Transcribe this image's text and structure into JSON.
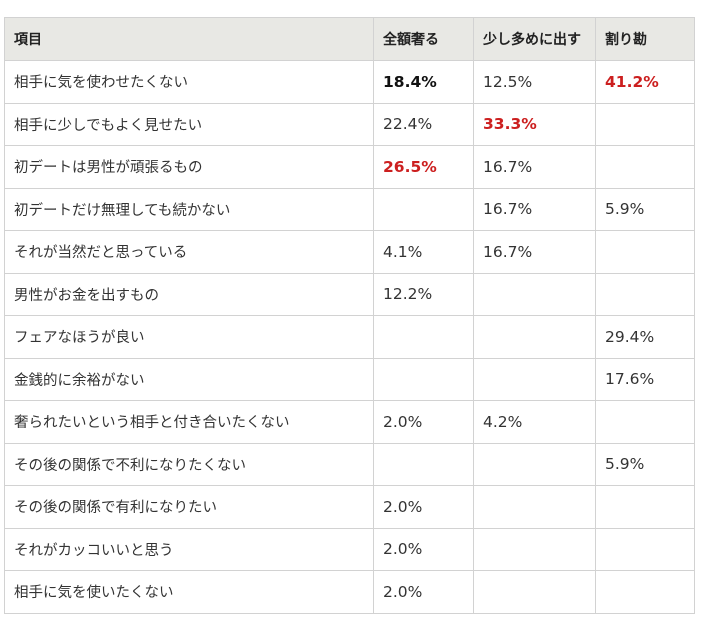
{
  "table": {
    "headers": [
      "項目",
      "全額奢る",
      "少し多めに出す",
      "割り勘"
    ],
    "rows": [
      {
        "item": "相手に気を使わせたくない",
        "full": "18.4%",
        "more": "12.5%",
        "split": "41.2%"
      },
      {
        "item": "相手に少しでもよく見せたい",
        "full": "22.4%",
        "more": "33.3%",
        "split": ""
      },
      {
        "item": "初デートは男性が頑張るもの",
        "full": "26.5%",
        "more": "16.7%",
        "split": ""
      },
      {
        "item": "初デートだけ無理しても続かない",
        "full": "",
        "more": "16.7%",
        "split": "5.9%"
      },
      {
        "item": "それが当然だと思っている",
        "full": "4.1%",
        "more": "16.7%",
        "split": ""
      },
      {
        "item": "男性がお金を出すもの",
        "full": "12.2%",
        "more": "",
        "split": ""
      },
      {
        "item": "フェアなほうが良い",
        "full": "",
        "more": "",
        "split": "29.4%"
      },
      {
        "item": "金銭的に余裕がない",
        "full": "",
        "more": "",
        "split": "17.6%"
      },
      {
        "item": "奢られたいという相手と付き合いたくない",
        "full": "2.0%",
        "more": "4.2%",
        "split": ""
      },
      {
        "item": "その後の関係で不利になりたくない",
        "full": "",
        "more": "",
        "split": "5.9%"
      },
      {
        "item": "その後の関係で有利になりたい",
        "full": "2.0%",
        "more": "",
        "split": ""
      },
      {
        "item": "それがカッコいいと思う",
        "full": "2.0%",
        "more": "",
        "split": ""
      },
      {
        "item": "相手に気を使いたくない",
        "full": "2.0%",
        "more": "",
        "split": ""
      }
    ]
  },
  "colors": {
    "header_bg": "#e8e8e4",
    "border": "#d2d2d2",
    "highlight_red": "#cc1f1f",
    "text": "#333333"
  }
}
